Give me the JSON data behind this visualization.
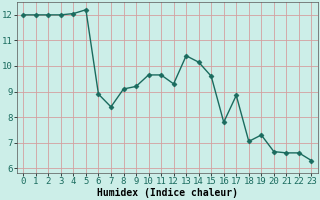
{
  "x": [
    0,
    1,
    2,
    3,
    4,
    5,
    6,
    7,
    8,
    9,
    10,
    11,
    12,
    13,
    14,
    15,
    16,
    17,
    18,
    19,
    20,
    21,
    22,
    23
  ],
  "y": [
    12.0,
    12.0,
    12.0,
    12.0,
    12.05,
    12.2,
    8.9,
    8.4,
    9.1,
    9.2,
    9.65,
    9.65,
    9.3,
    10.4,
    10.15,
    9.6,
    7.8,
    8.85,
    7.05,
    7.3,
    6.65,
    6.6,
    6.6,
    6.3
  ],
  "xlabel": "Humidex (Indice chaleur)",
  "xlim_min": -0.5,
  "xlim_max": 23.5,
  "ylim_min": 5.8,
  "ylim_max": 12.5,
  "yticks": [
    6,
    7,
    8,
    9,
    10,
    11,
    12
  ],
  "xticks": [
    0,
    1,
    2,
    3,
    4,
    5,
    6,
    7,
    8,
    9,
    10,
    11,
    12,
    13,
    14,
    15,
    16,
    17,
    18,
    19,
    20,
    21,
    22,
    23
  ],
  "line_color": "#1a6b5e",
  "marker": "D",
  "marker_size": 2.5,
  "bg_color": "#cceee8",
  "grid_color": "#d4a0a0",
  "xlabel_fontsize": 7,
  "tick_fontsize": 6.5,
  "linewidth": 1.0
}
